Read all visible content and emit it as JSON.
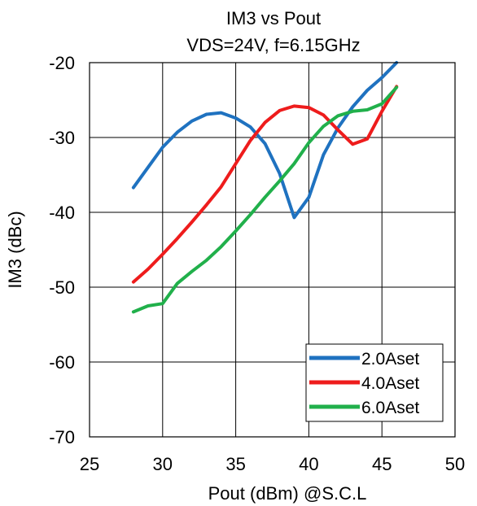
{
  "chart_data": {
    "type": "line",
    "title": "IM3 vs Pout",
    "subtitle": "VDS=24V, f=6.15GHz",
    "xlabel": "Pout (dBm) @S.C.L",
    "ylabel": "IM3 (dBc)",
    "xlim": [
      25,
      50
    ],
    "ylim": [
      -70,
      -20
    ],
    "xticks": [
      25,
      30,
      35,
      40,
      45,
      50
    ],
    "yticks": [
      -70,
      -60,
      -50,
      -40,
      -30,
      -20
    ],
    "grid": true,
    "legend_position": "bottom-right",
    "series": [
      {
        "name": "2.0Aset",
        "color": "#1f72c0",
        "x": [
          28,
          29,
          30,
          31,
          32,
          33,
          34,
          35,
          36,
          37,
          38,
          39,
          40,
          41,
          42,
          43,
          44,
          45,
          46
        ],
        "y": [
          -36.7,
          -34.0,
          -31.3,
          -29.3,
          -27.8,
          -26.9,
          -26.7,
          -27.4,
          -28.6,
          -30.8,
          -34.8,
          -40.7,
          -38.0,
          -32.3,
          -28.7,
          -25.9,
          -23.7,
          -22.0,
          -20.0
        ]
      },
      {
        "name": "4.0Aset",
        "color": "#ee1c1c",
        "x": [
          28,
          29,
          30,
          31,
          32,
          33,
          34,
          35,
          36,
          37,
          38,
          39,
          40,
          41,
          42,
          43,
          44,
          45,
          46
        ],
        "y": [
          -49.3,
          -47.6,
          -45.6,
          -43.5,
          -41.3,
          -39.0,
          -36.6,
          -33.5,
          -30.4,
          -28.0,
          -26.4,
          -25.8,
          -26.0,
          -27.0,
          -29.0,
          -30.9,
          -30.2,
          -26.5,
          -23.2
        ]
      },
      {
        "name": "6.0Aset",
        "color": "#21b04b",
        "x": [
          28,
          29,
          30,
          31,
          32,
          33,
          34,
          35,
          36,
          37,
          38,
          39,
          40,
          41,
          42,
          43,
          44,
          45,
          46
        ],
        "y": [
          -53.3,
          -52.5,
          -52.2,
          -49.5,
          -47.9,
          -46.4,
          -44.6,
          -42.5,
          -40.3,
          -38.0,
          -35.8,
          -33.5,
          -30.7,
          -28.5,
          -27.1,
          -26.5,
          -26.3,
          -25.5,
          -23.3
        ]
      }
    ]
  }
}
